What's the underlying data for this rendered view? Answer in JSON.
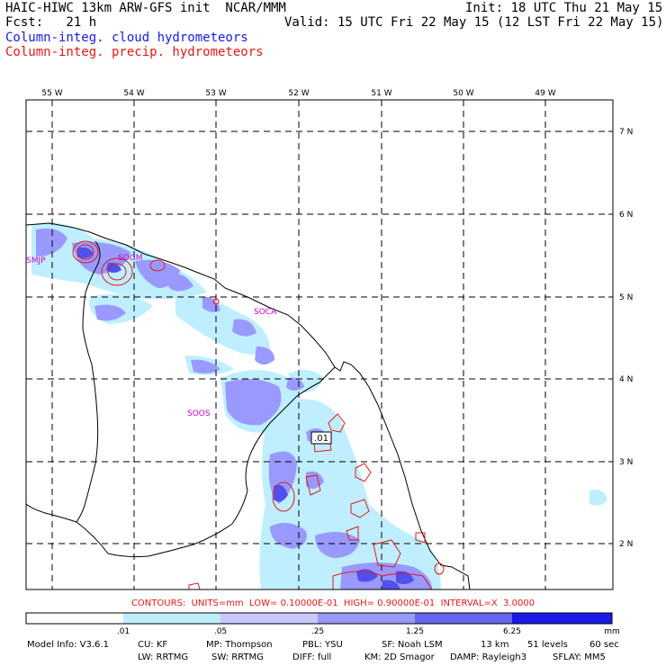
{
  "header": {
    "title": "HAIC-HIWC 13km ARW-GFS init  NCAR/MMM",
    "forecast": "Fcst:   21 h",
    "init": "Init: 18 UTC Thu 21 May 15",
    "valid": "Valid: 15 UTC Fri 22 May 15 (12 LST Fri 22 May 15)",
    "field_cloud": "Column-integ. cloud hydrometeors",
    "field_precip": "Column-integ. precip. hydrometeors"
  },
  "map": {
    "lon_labels": [
      "55 W",
      "54 W",
      "53 W",
      "52 W",
      "51 W",
      "50 W",
      "49 W"
    ],
    "lat_labels": [
      "7 N",
      "6 N",
      "5 N",
      "4 N",
      "3 N",
      "2 N"
    ],
    "stations": [
      "SMJP",
      "SOGM",
      "SOCA",
      "SOOS"
    ],
    "contour_label": ".01",
    "colors": {
      "cloud_light": "#bfefff",
      "cloud_mid": "#9999ff",
      "cloud_dark": "#5050ee",
      "precip_contour": "#e01919",
      "coast": "#000000"
    }
  },
  "contours_text": "CONTOURS:  UNITS=mm  LOW= 0.10000E-01  HIGH= 0.90000E-01  INTERVAL=X  3.0000",
  "colorbar": {
    "levels": [
      ".01",
      ".05",
      ".25",
      "1.25",
      "6.25"
    ],
    "unit": "mm",
    "colors": [
      "#ffffff",
      "#bfefff",
      "#c8c8ff",
      "#9999ff",
      "#6464ee",
      "#1a1ae6"
    ]
  },
  "footer": {
    "line1": [
      "Model Info: V3.6.1",
      "CU: KF",
      "MP: Thompson",
      "PBL: YSU",
      "SF: Noah LSM",
      "13 km",
      "51 levels",
      "60 sec"
    ],
    "line2": [
      "LW: RRTMG",
      "SW: RRTMG",
      "DIFF: full",
      "KM: 2D Smagor",
      "DAMP: Rayleigh3",
      "SFLAY: MM5"
    ]
  }
}
